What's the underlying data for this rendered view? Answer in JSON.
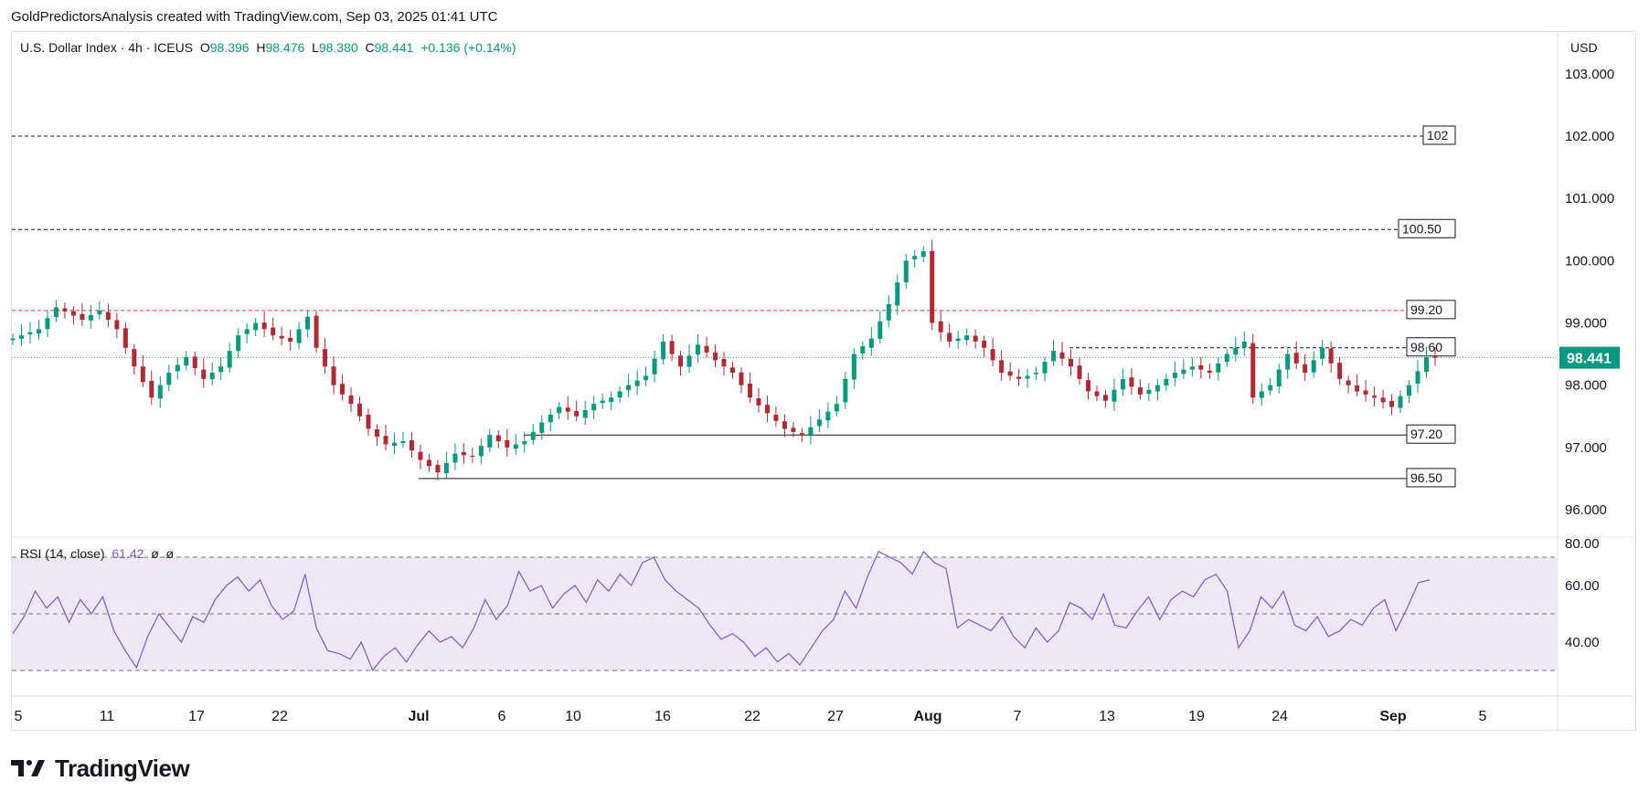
{
  "caption": "GoldPredictorsAnalysis created with TradingView.com, Sep 03, 2025 01:41 UTC",
  "legend": {
    "symbol": "U.S. Dollar Index · 4h · ICEUS",
    "o_label": "O",
    "o": "98.396",
    "h_label": "H",
    "h": "98.476",
    "l_label": "L",
    "l": "98.380",
    "c_label": "C",
    "c": "98.441",
    "change": "+0.136 (+0.14%)"
  },
  "currency": "USD",
  "rsi_legend": {
    "name": "RSI (14, close)",
    "value": "61.42",
    "extra1": "ø",
    "extra2": "ø"
  },
  "footer_brand": "TradingView",
  "colors": {
    "up": "#089981",
    "down": "#b22833",
    "rsi": "#7e57c2",
    "rsi_band": "#ede7f6",
    "last_price": "#089981",
    "red_level": "#f23645",
    "green_level": "#4caf50"
  },
  "chart_data": [
    {
      "type": "candlestick",
      "ylim": [
        95.55,
        103.0
      ],
      "y_ticks": [
        "96.000",
        "97.000",
        "98.000",
        "99.000",
        "100.000",
        "101.000",
        "102.000",
        "103.000"
      ],
      "x_ticks": [
        "5",
        "11",
        "17",
        "22",
        "Jul",
        "6",
        "10",
        "16",
        "22",
        "27",
        "Aug",
        "7",
        "13",
        "19",
        "24",
        "Sep",
        "5"
      ],
      "last_price": "98.441",
      "levels": [
        {
          "value": 102.0,
          "label": "102",
          "style": "dashed",
          "color": "#131722"
        },
        {
          "value": 100.5,
          "label": "100.50",
          "style": "dashed",
          "color": "#131722"
        },
        {
          "value": 99.2,
          "label": "99.20",
          "style": "dashed",
          "color": "#f23645"
        },
        {
          "value": 98.6,
          "label": "98.60",
          "style": "dashed",
          "color": "#131722"
        },
        {
          "value": 97.2,
          "label": "97.20",
          "style": "solid",
          "color": "#131722"
        },
        {
          "value": 96.5,
          "label": "96.50",
          "style": "solid",
          "color": "#131722"
        }
      ],
      "close_path": [
        [
          0,
          98.75
        ],
        [
          3,
          98.9
        ],
        [
          5,
          99.25
        ],
        [
          8,
          99.05
        ],
        [
          10,
          99.2
        ],
        [
          12,
          98.9
        ],
        [
          14,
          98.3
        ],
        [
          16,
          97.8
        ],
        [
          18,
          98.2
        ],
        [
          20,
          98.45
        ],
        [
          22,
          98.1
        ],
        [
          24,
          98.3
        ],
        [
          26,
          98.8
        ],
        [
          28,
          99.0
        ],
        [
          30,
          98.8
        ],
        [
          32,
          98.7
        ],
        [
          34,
          99.1
        ],
        [
          35,
          98.6
        ],
        [
          37,
          98.0
        ],
        [
          39,
          97.7
        ],
        [
          41,
          97.3
        ],
        [
          43,
          97.05
        ],
        [
          45,
          97.1
        ],
        [
          47,
          96.8
        ],
        [
          49,
          96.6
        ],
        [
          51,
          96.9
        ],
        [
          53,
          96.85
        ],
        [
          55,
          97.2
        ],
        [
          57,
          97.0
        ],
        [
          59,
          97.1
        ],
        [
          61,
          97.4
        ],
        [
          63,
          97.65
        ],
        [
          65,
          97.5
        ],
        [
          67,
          97.7
        ],
        [
          69,
          97.8
        ],
        [
          71,
          98.0
        ],
        [
          73,
          98.15
        ],
        [
          75,
          98.7
        ],
        [
          77,
          98.3
        ],
        [
          79,
          98.65
        ],
        [
          81,
          98.4
        ],
        [
          83,
          98.2
        ],
        [
          85,
          97.8
        ],
        [
          87,
          97.55
        ],
        [
          89,
          97.3
        ],
        [
          91,
          97.2
        ],
        [
          93,
          97.45
        ],
        [
          95,
          97.7
        ],
        [
          97,
          98.5
        ],
        [
          99,
          98.75
        ],
        [
          101,
          99.3
        ],
        [
          103,
          100.0
        ],
        [
          105,
          100.15
        ],
        [
          106,
          99.0
        ],
        [
          108,
          98.7
        ],
        [
          110,
          98.8
        ],
        [
          112,
          98.6
        ],
        [
          114,
          98.2
        ],
        [
          116,
          98.1
        ],
        [
          118,
          98.2
        ],
        [
          120,
          98.55
        ],
        [
          122,
          98.3
        ],
        [
          124,
          97.9
        ],
        [
          126,
          97.75
        ],
        [
          128,
          98.1
        ],
        [
          130,
          97.85
        ],
        [
          132,
          98.0
        ],
        [
          134,
          98.2
        ],
        [
          136,
          98.3
        ],
        [
          138,
          98.2
        ],
        [
          140,
          98.5
        ],
        [
          142,
          98.7
        ],
        [
          143,
          97.8
        ],
        [
          145,
          98.0
        ],
        [
          147,
          98.5
        ],
        [
          149,
          98.2
        ],
        [
          151,
          98.6
        ],
        [
          153,
          98.1
        ],
        [
          155,
          97.9
        ],
        [
          157,
          97.8
        ],
        [
          159,
          97.65
        ],
        [
          161,
          98.0
        ],
        [
          163,
          98.45
        ],
        [
          164,
          98.44
        ]
      ],
      "x_index_range": [
        0,
        180
      ]
    },
    {
      "type": "line",
      "series": [
        {
          "values": [
            43,
            49,
            58,
            52,
            56,
            47,
            55,
            50,
            56,
            44,
            37,
            31,
            42,
            50,
            45,
            40,
            49,
            47,
            55,
            60,
            63,
            58,
            62,
            53,
            48,
            51,
            64,
            45,
            37,
            36,
            34,
            40,
            30,
            35,
            38,
            33,
            39,
            44,
            40,
            42,
            38,
            45,
            55,
            48,
            53,
            65,
            58,
            60,
            52,
            57,
            60,
            54,
            62,
            58,
            64,
            60,
            68,
            70,
            62,
            58,
            55,
            52,
            46,
            41,
            43,
            40,
            35,
            38,
            33,
            36,
            32,
            38,
            44,
            48,
            58,
            52,
            63,
            72,
            70,
            68,
            64,
            72,
            68,
            66,
            45,
            48,
            46,
            44,
            49,
            42,
            38,
            45,
            40,
            44,
            54,
            52,
            48,
            57,
            46,
            45,
            51,
            56,
            48,
            55,
            58,
            56,
            62,
            64,
            58,
            38,
            44,
            56,
            52,
            58,
            46,
            44,
            49,
            42,
            44,
            48,
            46,
            52,
            55,
            44,
            52,
            61,
            62
          ]
        }
      ],
      "ylim": [
        24,
        80
      ],
      "y_ticks": [
        "40.00",
        "60.00",
        "80.00"
      ],
      "bands": [
        30,
        50,
        70
      ]
    }
  ]
}
